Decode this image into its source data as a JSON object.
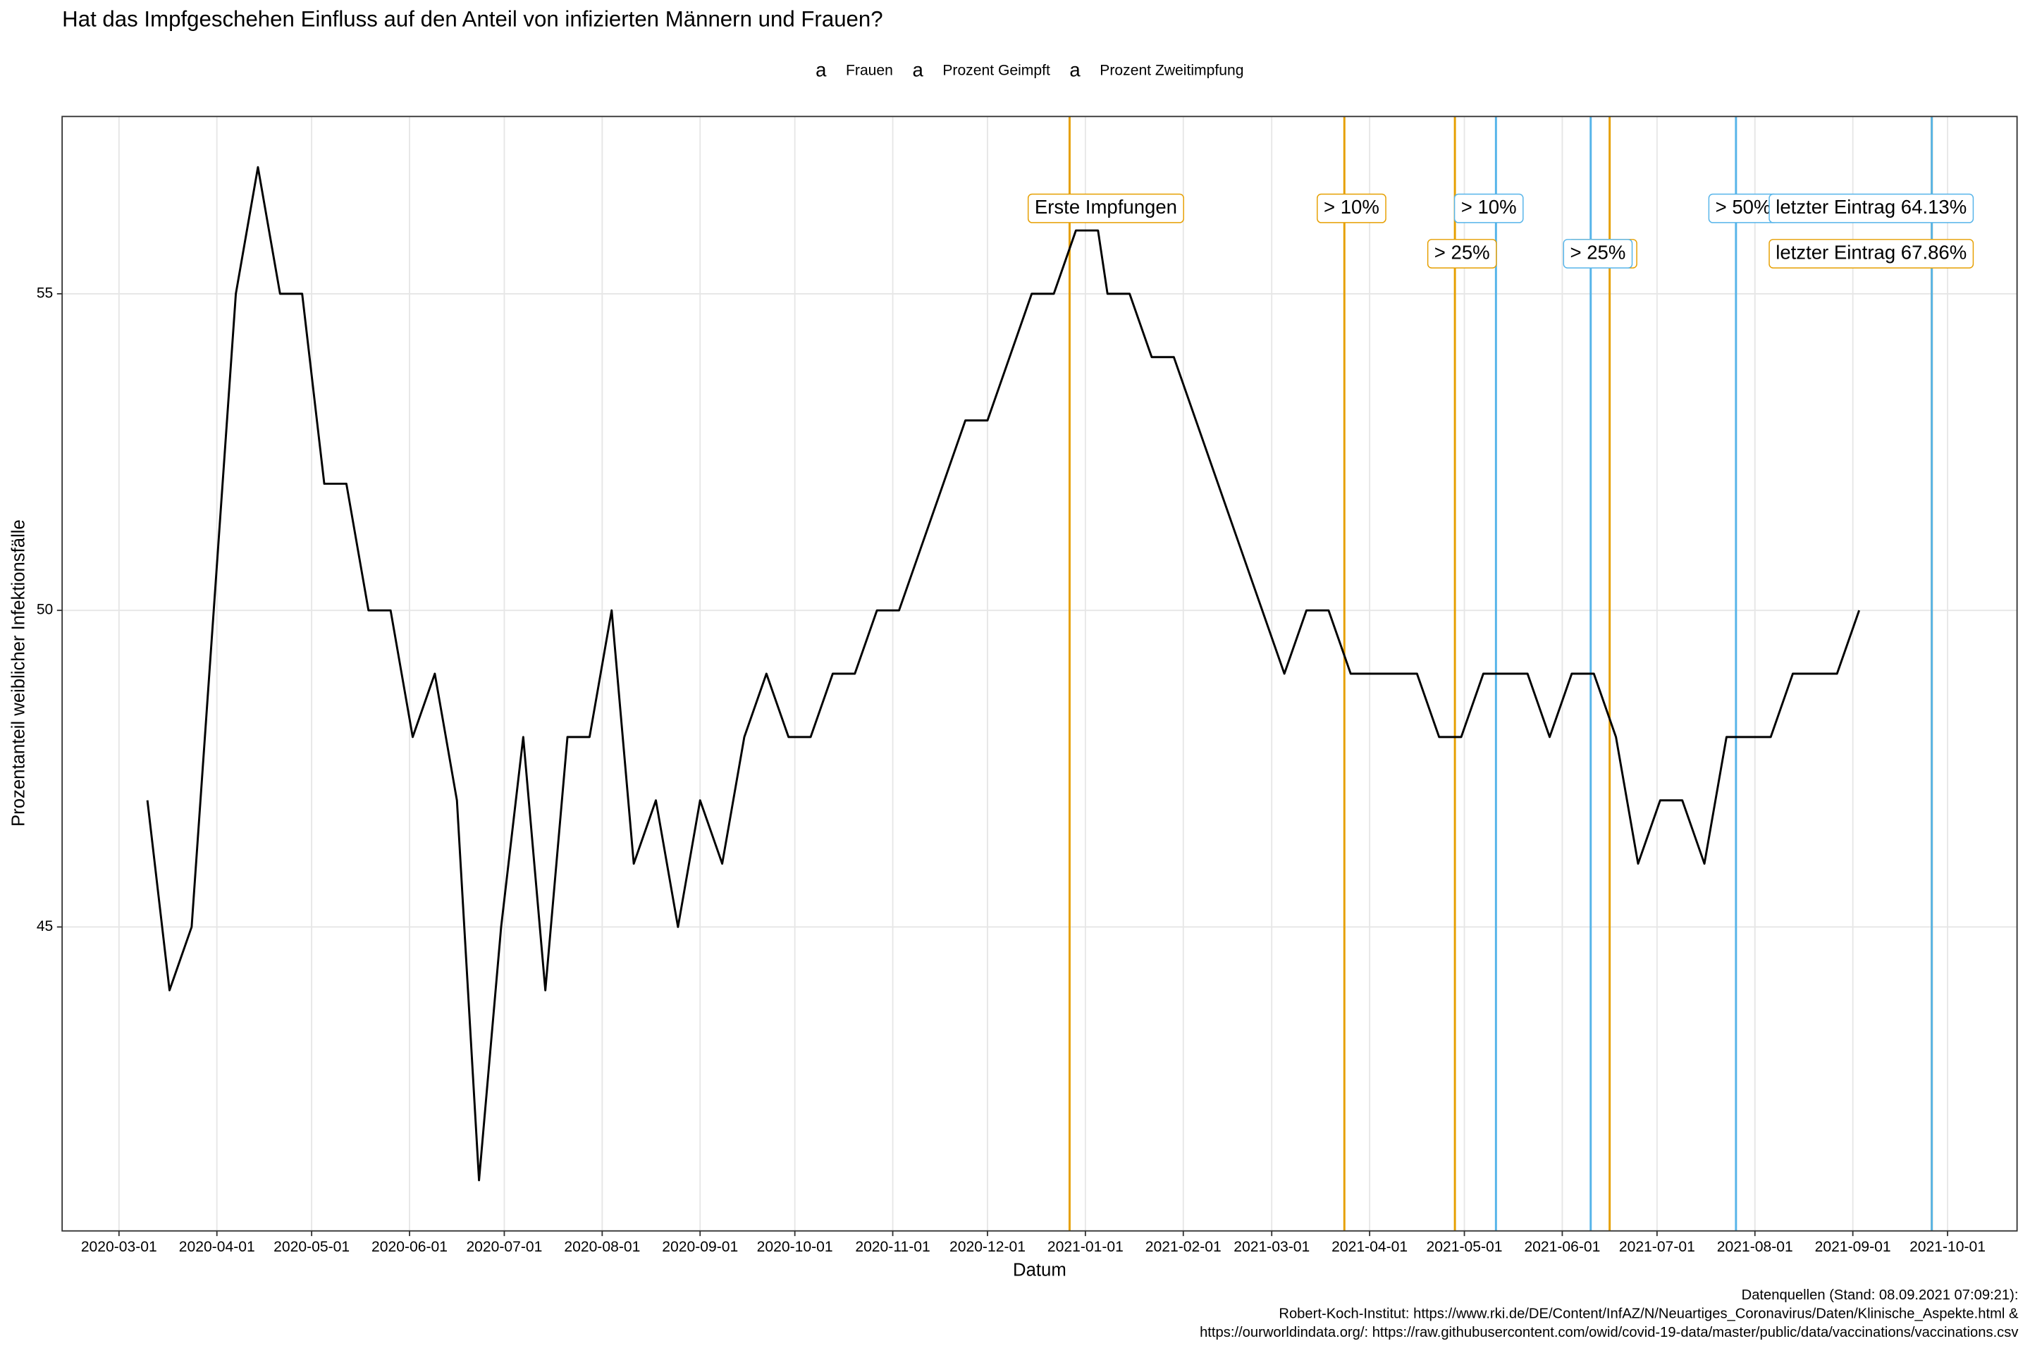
{
  "chart_data": {
    "type": "line",
    "title": "Hat das Impfgeschehen Einfluss auf den Anteil von infizierten Männern und Frauen?",
    "x_label": "Datum",
    "y_label": "Prozentanteil weiblicher Infektionsfälle",
    "legend_key": "a",
    "legend_position": "top",
    "grid": true,
    "x": [
      "2020-03-10",
      "2020-03-17",
      "2020-03-24",
      "2020-03-31",
      "2020-04-07",
      "2020-04-14",
      "2020-04-21",
      "2020-04-28",
      "2020-05-05",
      "2020-05-12",
      "2020-05-19",
      "2020-05-26",
      "2020-06-02",
      "2020-06-09",
      "2020-06-16",
      "2020-06-23",
      "2020-06-30",
      "2020-07-07",
      "2020-07-14",
      "2020-07-21",
      "2020-07-28",
      "2020-08-04",
      "2020-08-11",
      "2020-08-18",
      "2020-08-25",
      "2020-09-01",
      "2020-09-08",
      "2020-09-15",
      "2020-09-22",
      "2020-09-29",
      "2020-10-06",
      "2020-10-13",
      "2020-10-20",
      "2020-10-27",
      "2020-11-03",
      "2020-11-10",
      "2020-11-17",
      "2020-11-24",
      "2020-12-01",
      "2020-12-08",
      "2020-12-15",
      "2020-12-22",
      "2020-12-29",
      "2021-01-05",
      "2021-01-08",
      "2021-01-15",
      "2021-01-22",
      "2021-01-29",
      "2021-02-05",
      "2021-02-12",
      "2021-02-19",
      "2021-02-26",
      "2021-03-05",
      "2021-03-12",
      "2021-03-19",
      "2021-03-26",
      "2021-04-02",
      "2021-04-09",
      "2021-04-16",
      "2021-04-23",
      "2021-04-30",
      "2021-05-07",
      "2021-05-14",
      "2021-05-21",
      "2021-05-28",
      "2021-06-04",
      "2021-06-11",
      "2021-06-18",
      "2021-06-25",
      "2021-07-02",
      "2021-07-09",
      "2021-07-16",
      "2021-07-23",
      "2021-07-30",
      "2021-08-06",
      "2021-08-13",
      "2021-08-20",
      "2021-08-27",
      "2021-09-03"
    ],
    "series": [
      {
        "name": "Frauen",
        "color": "#000000",
        "values": [
          47,
          44,
          45,
          50,
          55,
          57,
          55,
          55,
          52,
          52,
          50,
          50,
          48,
          49,
          47,
          41,
          45,
          48,
          44,
          48,
          48,
          50,
          46,
          47,
          45,
          47,
          46,
          48,
          49,
          48,
          48,
          49,
          49,
          50,
          50,
          51,
          52,
          53,
          53,
          54,
          55,
          55,
          56,
          56,
          55,
          55,
          54,
          54,
          53,
          52,
          51,
          50,
          49,
          50,
          50,
          49,
          49,
          49,
          49,
          48,
          48,
          49,
          49,
          49,
          48,
          49,
          49,
          48,
          46,
          47,
          47,
          46,
          48,
          48,
          48,
          49,
          49,
          49,
          50
        ]
      }
    ],
    "vlines": [
      {
        "name": "Prozent Geimpft",
        "color": "#E69F00",
        "lines": [
          {
            "x": "2020-12-27",
            "label": "Erste Impfungen"
          },
          {
            "x": "2021-03-24",
            "label": "> 10%"
          },
          {
            "x": "2021-04-28",
            "label": "> 25%"
          },
          {
            "x": "2021-06-16",
            "label": "> 50%"
          },
          {
            "x": "2021-09-26",
            "label": "letzter Eintrag 67.86%"
          }
        ]
      },
      {
        "name": "Prozent Zweitimpfung",
        "color": "#56B4E9",
        "lines": [
          {
            "x": "2021-05-11",
            "label": "> 10%"
          },
          {
            "x": "2021-06-10",
            "label": "> 25%"
          },
          {
            "x": "2021-07-26",
            "label": "> 50%"
          },
          {
            "x": "2021-09-26",
            "label": "letzter Eintrag 64.13%"
          }
        ]
      }
    ],
    "xlim": [
      "2020-02-12",
      "2021-10-23"
    ],
    "xticks": [
      "2020-03-01",
      "2020-04-01",
      "2020-05-01",
      "2020-06-01",
      "2020-07-01",
      "2020-08-01",
      "2020-09-01",
      "2020-10-01",
      "2020-11-01",
      "2020-12-01",
      "2021-01-01",
      "2021-02-01",
      "2021-03-01",
      "2021-04-01",
      "2021-05-01",
      "2021-06-01",
      "2021-07-01",
      "2021-08-01",
      "2021-09-01",
      "2021-10-01"
    ],
    "ylim": [
      40.2,
      57.8
    ],
    "yticks": [
      45,
      50,
      55
    ],
    "caption": [
      "Datenquellen (Stand: 08.09.2021 07:09:21):",
      "Robert-Koch-Institut: https://www.rki.de/DE/Content/InfAZ/N/Neuartiges_Coronavirus/Daten/Klinische_Aspekte.html &",
      "https://ourworldindata.org/: https://raw.githubusercontent.com/owid/covid-19-data/master/public/data/vaccinations/vaccinations.csv"
    ]
  }
}
